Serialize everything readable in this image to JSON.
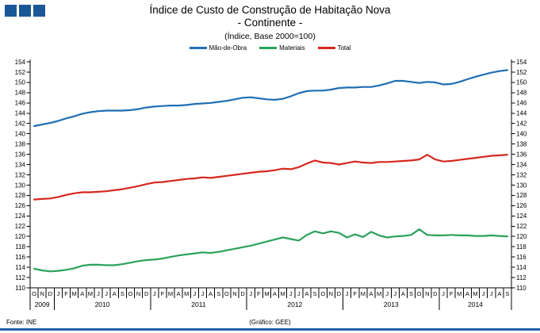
{
  "colors": {
    "logo": "#1a5796",
    "footer_rule": "#1f62a8",
    "axis": "#000000"
  },
  "footer": {
    "source": "Fonte: INE",
    "credit": "(Gráfico: GEE)"
  },
  "chart_data": {
    "type": "line",
    "title": "Índice de Custo de Construção de Habitação Nova",
    "subtitle": "- Continente -",
    "note": "(Índice, Base 2000=100)",
    "ylim": [
      110,
      154
    ],
    "ytick_step": 2,
    "grid": false,
    "legend_position": "top-center",
    "y_axis_sides": [
      "left",
      "right"
    ],
    "x_years": [
      {
        "year": "2009",
        "months": [
          "O",
          "N",
          "D"
        ]
      },
      {
        "year": "2010",
        "months": [
          "J",
          "F",
          "M",
          "A",
          "M",
          "J",
          "J",
          "A",
          "S",
          "O",
          "N",
          "D"
        ]
      },
      {
        "year": "2011",
        "months": [
          "J",
          "F",
          "M",
          "A",
          "M",
          "J",
          "J",
          "A",
          "S",
          "O",
          "N",
          "D"
        ]
      },
      {
        "year": "2012",
        "months": [
          "J",
          "F",
          "M",
          "A",
          "M",
          "J",
          "J",
          "A",
          "S",
          "O",
          "N",
          "D"
        ]
      },
      {
        "year": "2013",
        "months": [
          "J",
          "F",
          "M",
          "A",
          "M",
          "J",
          "J",
          "A",
          "S",
          "O",
          "N",
          "D"
        ]
      },
      {
        "year": "2014",
        "months": [
          "J",
          "F",
          "M",
          "A",
          "M",
          "J",
          "J",
          "A",
          "S"
        ]
      }
    ],
    "series": [
      {
        "name": "Mão-de-Obra",
        "color": "#1f6fb4",
        "values": [
          141.5,
          141.8,
          142.1,
          142.5,
          143.0,
          143.4,
          143.9,
          144.2,
          144.4,
          144.5,
          144.5,
          144.5,
          144.6,
          144.8,
          145.1,
          145.3,
          145.4,
          145.5,
          145.5,
          145.6,
          145.8,
          145.9,
          146.0,
          146.2,
          146.4,
          146.7,
          147.0,
          147.1,
          146.9,
          146.7,
          146.6,
          146.8,
          147.3,
          147.9,
          148.3,
          148.4,
          148.4,
          148.6,
          148.9,
          149.0,
          149.0,
          149.1,
          149.1,
          149.4,
          149.8,
          150.3,
          150.3,
          150.1,
          149.9,
          150.1,
          150.0,
          149.6,
          149.7,
          150.1,
          150.6,
          151.1,
          151.5,
          151.9,
          152.2,
          152.4
        ]
      },
      {
        "name": "Materiais",
        "color": "#2aa25a",
        "values": [
          113.7,
          113.4,
          113.2,
          113.3,
          113.5,
          113.8,
          114.3,
          114.5,
          114.5,
          114.4,
          114.4,
          114.6,
          114.9,
          115.2,
          115.4,
          115.5,
          115.7,
          116.0,
          116.3,
          116.5,
          116.7,
          116.9,
          116.8,
          117.0,
          117.3,
          117.6,
          117.9,
          118.2,
          118.6,
          119.0,
          119.4,
          119.8,
          119.5,
          119.2,
          120.3,
          121.0,
          120.6,
          121.0,
          120.7,
          119.8,
          120.4,
          119.9,
          120.9,
          120.2,
          119.8,
          120.0,
          120.1,
          120.3,
          121.4,
          120.3,
          120.2,
          120.2,
          120.3,
          120.2,
          120.2,
          120.1,
          120.1,
          120.2,
          120.1,
          120.0
        ]
      },
      {
        "name": "Total",
        "color": "#d5281e",
        "values": [
          127.2,
          127.3,
          127.4,
          127.7,
          128.1,
          128.4,
          128.6,
          128.6,
          128.7,
          128.8,
          129.0,
          129.2,
          129.5,
          129.8,
          130.2,
          130.5,
          130.6,
          130.8,
          131.0,
          131.2,
          131.3,
          131.5,
          131.4,
          131.6,
          131.8,
          132.0,
          132.2,
          132.4,
          132.6,
          132.7,
          132.9,
          133.2,
          133.1,
          133.5,
          134.2,
          134.8,
          134.4,
          134.3,
          134.0,
          134.3,
          134.6,
          134.4,
          134.3,
          134.5,
          134.5,
          134.6,
          134.7,
          134.8,
          135.0,
          135.9,
          135.0,
          134.6,
          134.7,
          134.9,
          135.1,
          135.3,
          135.5,
          135.7,
          135.8,
          135.9
        ]
      }
    ]
  }
}
